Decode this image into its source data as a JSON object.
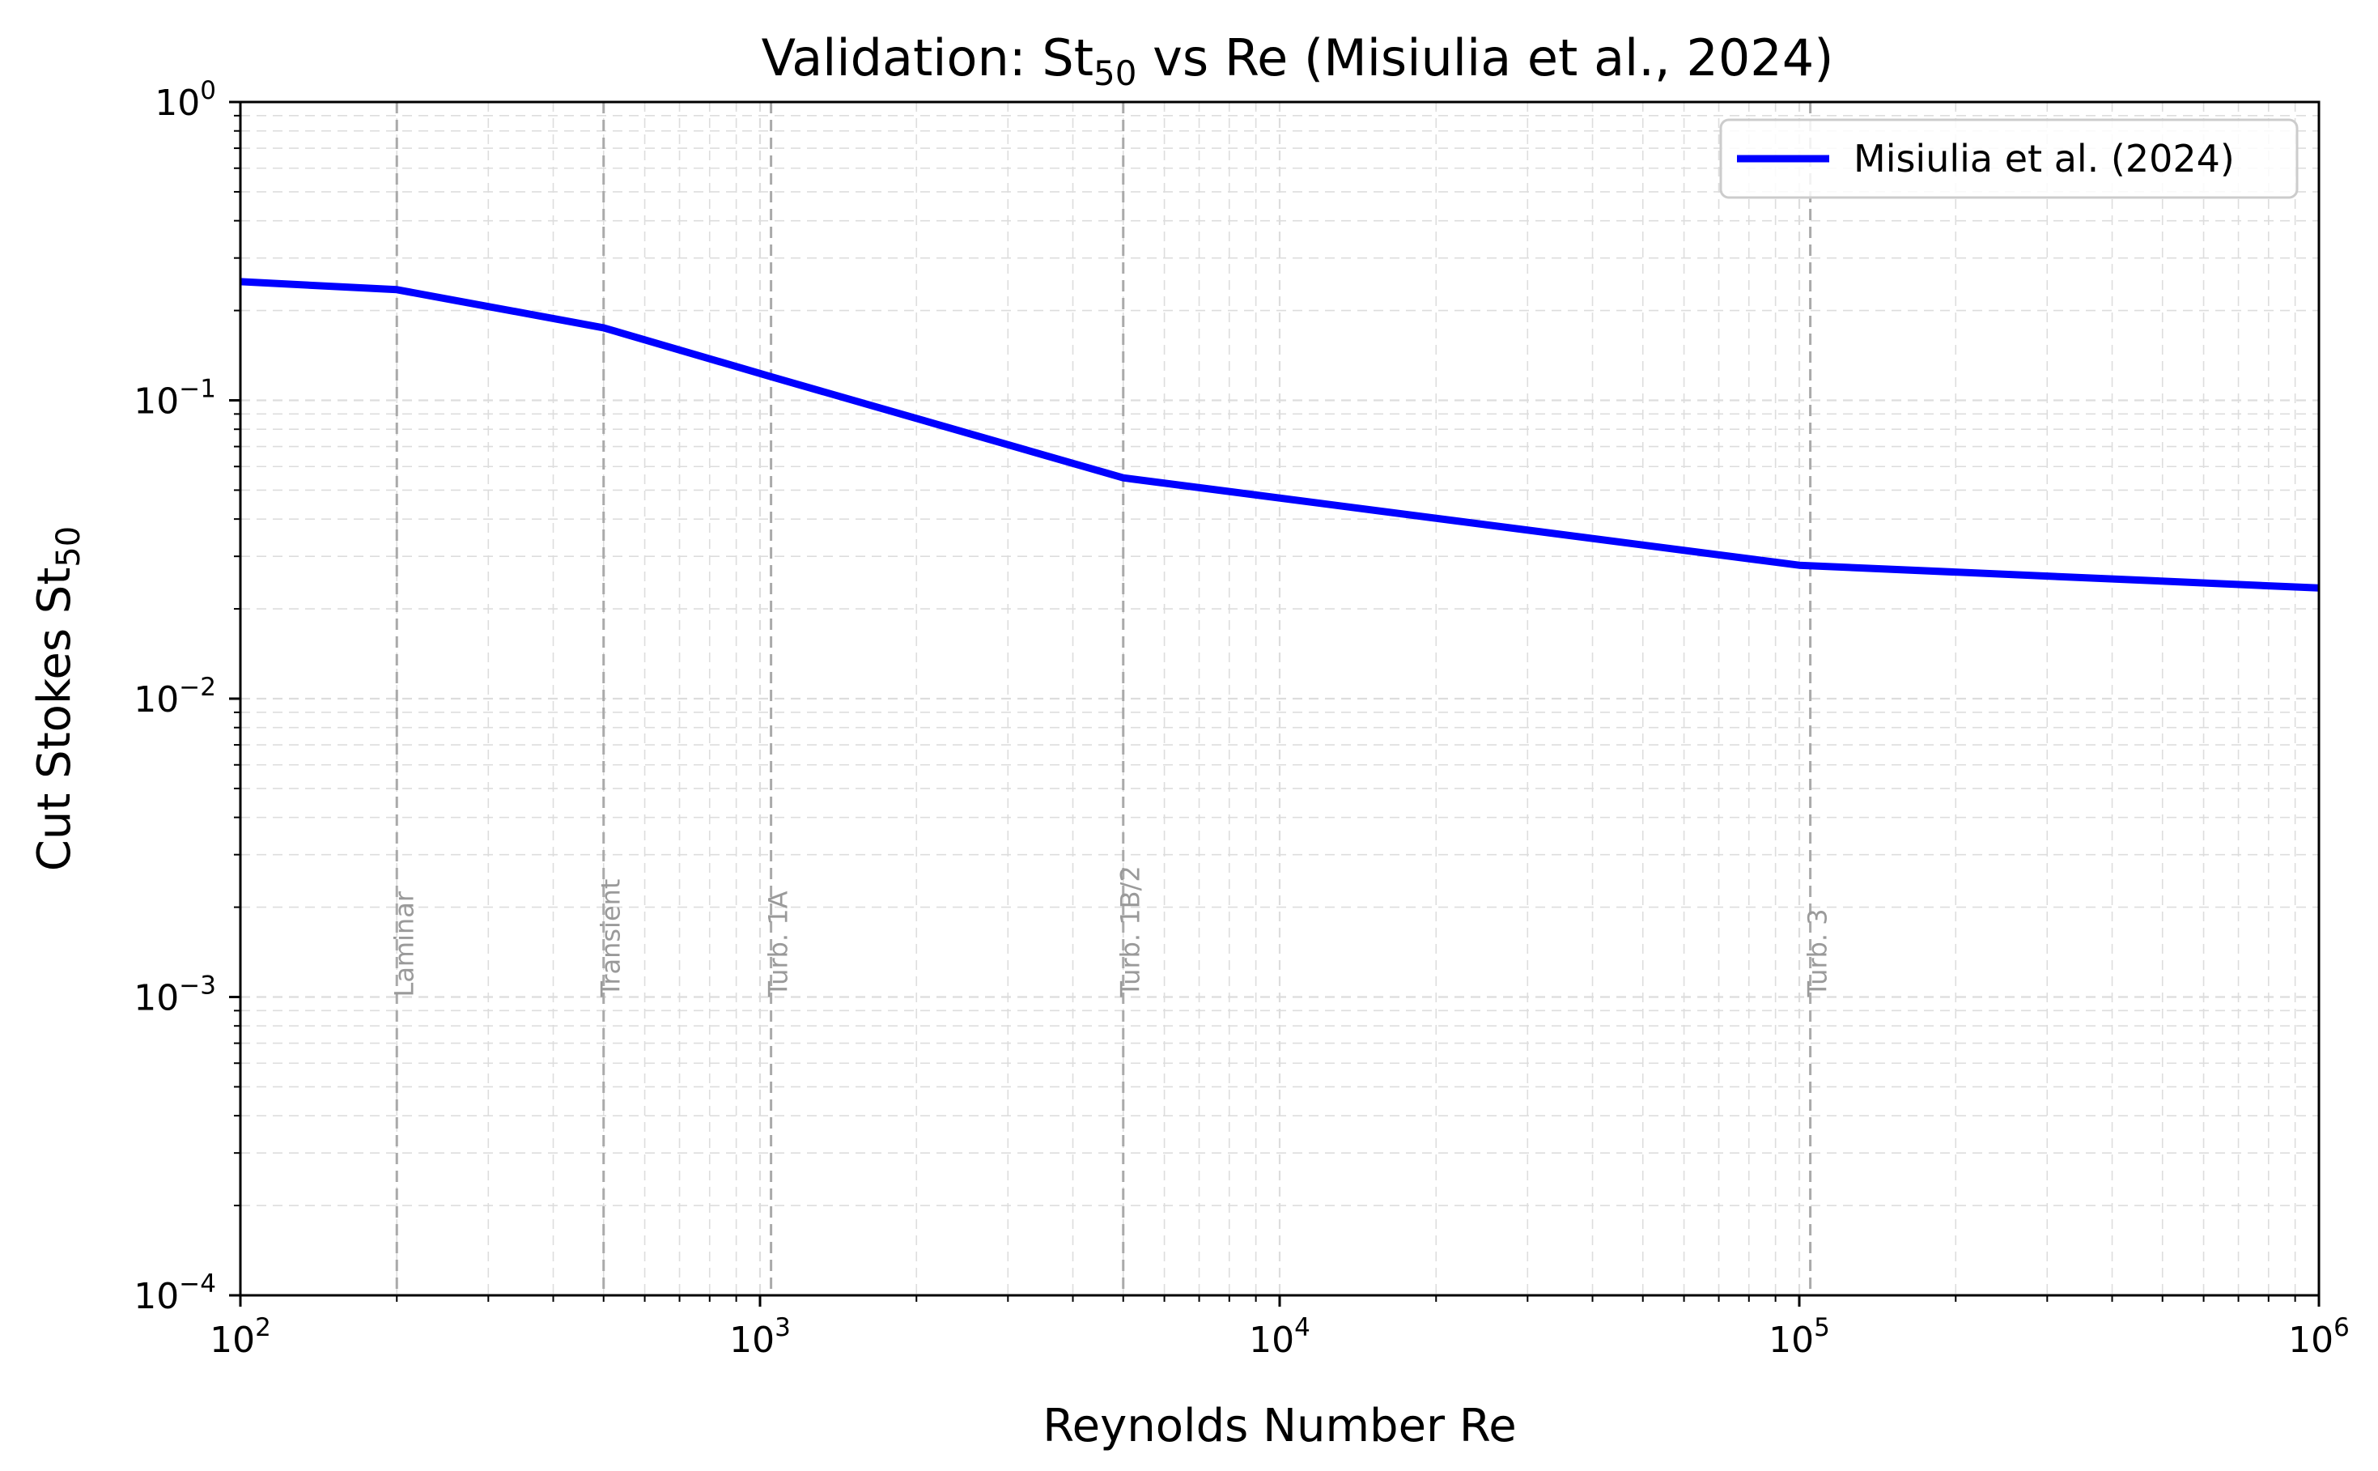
{
  "chart_data": {
    "type": "line",
    "title": {
      "prefix": "Validation: St",
      "subscript": "50",
      "suffix": " vs Re (Misiulia et al., 2024)"
    },
    "xlabel": "Reynolds Number Re",
    "ylabel": {
      "prefix": "Cut Stokes St",
      "subscript": "50"
    },
    "xscale": "log",
    "yscale": "log",
    "xlim": [
      100,
      1000000
    ],
    "ylim": [
      0.0001,
      1
    ],
    "x_ticks": [
      {
        "value": 100,
        "base": "10",
        "exp": "2"
      },
      {
        "value": 1000,
        "base": "10",
        "exp": "3"
      },
      {
        "value": 10000,
        "base": "10",
        "exp": "4"
      },
      {
        "value": 100000,
        "base": "10",
        "exp": "5"
      },
      {
        "value": 1000000,
        "base": "10",
        "exp": "6"
      }
    ],
    "y_ticks": [
      {
        "value": 1,
        "base": "10",
        "exp": "0"
      },
      {
        "value": 0.1,
        "base": "10",
        "exp": "−1"
      },
      {
        "value": 0.01,
        "base": "10",
        "exp": "−2"
      },
      {
        "value": 0.001,
        "base": "10",
        "exp": "−3"
      },
      {
        "value": 0.0001,
        "base": "10",
        "exp": "−4"
      }
    ],
    "grid": true,
    "legend_position": "top-right",
    "series": [
      {
        "name": "Misiulia et al. (2024)",
        "color": "#0000ff",
        "x": [
          100,
          200,
          500,
          1050,
          5000,
          100000,
          1000000
        ],
        "y": [
          0.25,
          0.235,
          0.175,
          0.12,
          0.055,
          0.028,
          0.0235
        ]
      }
    ],
    "regions": [
      {
        "label": "Laminar",
        "x": 200
      },
      {
        "label": "Transient",
        "x": 500
      },
      {
        "label": "Turb. 1A",
        "x": 1050
      },
      {
        "label": "Turb. 1B/2",
        "x": 5000
      },
      {
        "label": "Turb. 3",
        "x": 105000
      }
    ],
    "colors": {
      "line": "#0000ff",
      "region_line": "#aaaaaa",
      "region_text": "#9a9a9a",
      "grid": "#dddddd"
    }
  }
}
